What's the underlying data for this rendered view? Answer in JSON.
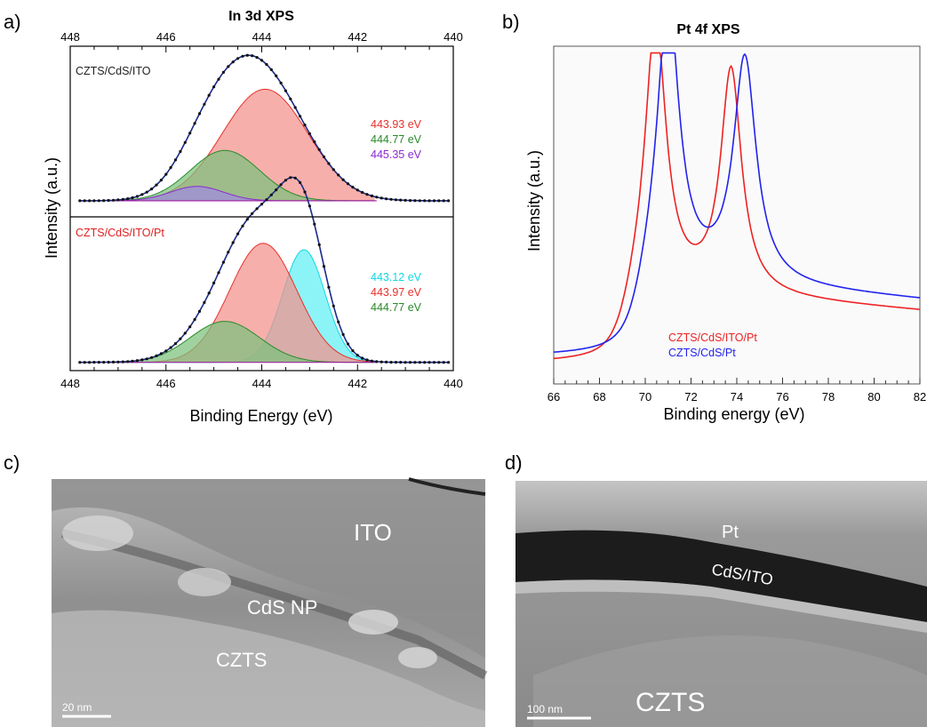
{
  "panels": {
    "a": "a)",
    "b": "b)",
    "c": "c)",
    "d": "d)"
  },
  "chart_data": [
    {
      "type": "line",
      "panel": "a",
      "title": "In 3d XPS",
      "xlabel": "Binding Energy (eV)",
      "ylabel": "Intensity (a.u.)",
      "xlim": [
        448,
        440
      ],
      "x_ticks": [
        "448",
        "446",
        "444",
        "442",
        "440"
      ],
      "subplots": [
        {
          "sample": "CZTS/CdS/ITO",
          "sample_color": "#222222",
          "peaks": [
            {
              "label": "443.93 eV",
              "center": 443.93,
              "height": 0.93,
              "fwhm": 2.1,
              "color": "#e8302a",
              "fill": "#f4908a"
            },
            {
              "label": "444.77 eV",
              "center": 444.77,
              "height": 0.42,
              "fwhm": 1.7,
              "color": "#2a8a2a",
              "fill": "#7cc07c"
            },
            {
              "label": "445.35 eV",
              "center": 445.35,
              "height": 0.12,
              "fwhm": 1.3,
              "color": "#8a2ad0",
              "fill": "#a08ae0"
            }
          ],
          "baseline": 0.03
        },
        {
          "sample": "CZTS/CdS/ITO/Pt",
          "sample_color": "#e02020",
          "peaks": [
            {
              "label": "443.12 eV",
              "center": 443.12,
              "height": 0.88,
              "fwhm": 1.05,
              "color": "#10d8e0",
              "fill": "#60f0f4"
            },
            {
              "label": "443.97 eV",
              "center": 443.97,
              "height": 0.93,
              "fwhm": 1.65,
              "color": "#e8302a",
              "fill": "#f4908a"
            },
            {
              "label": "444.77 eV",
              "center": 444.77,
              "height": 0.32,
              "fwhm": 1.7,
              "color": "#2a8a2a",
              "fill": "#7cc07c"
            }
          ],
          "baseline": 0.03
        }
      ]
    },
    {
      "type": "line",
      "panel": "b",
      "title": "Pt 4f XPS",
      "xlabel": "Binding energy (eV)",
      "ylabel": "Intensity (a.u.)",
      "xlim": [
        66,
        82
      ],
      "x_ticks": [
        "66",
        "68",
        "70",
        "72",
        "74",
        "76",
        "78",
        "80",
        "82"
      ],
      "ylim": [
        0,
        1
      ],
      "series": [
        {
          "name": "CZTS/CdS/ITO/Pt",
          "color": "#ee2222",
          "base0": 0.06,
          "base1": 0.3,
          "peaks": [
            {
              "center": 70.45,
              "height": 0.8,
              "width": 0.55
            },
            {
              "center": 73.75,
              "height": 0.66,
              "width": 0.55
            }
          ]
        },
        {
          "name": "CZTS/CdS/Pt",
          "color": "#2222ee",
          "base0": 0.08,
          "base1": 0.34,
          "peaks": [
            {
              "center": 71.0,
              "height": 0.82,
              "width": 0.58
            },
            {
              "center": 74.35,
              "height": 0.66,
              "width": 0.6
            }
          ]
        }
      ]
    }
  ],
  "images": {
    "c": {
      "labels": [
        "ITO",
        "CdS NP",
        "CZTS"
      ],
      "scale_bar": "20 nm"
    },
    "d": {
      "labels": [
        "Pt",
        "CdS/ITO",
        "CZTS"
      ],
      "scale_bar": "100 nm"
    }
  }
}
